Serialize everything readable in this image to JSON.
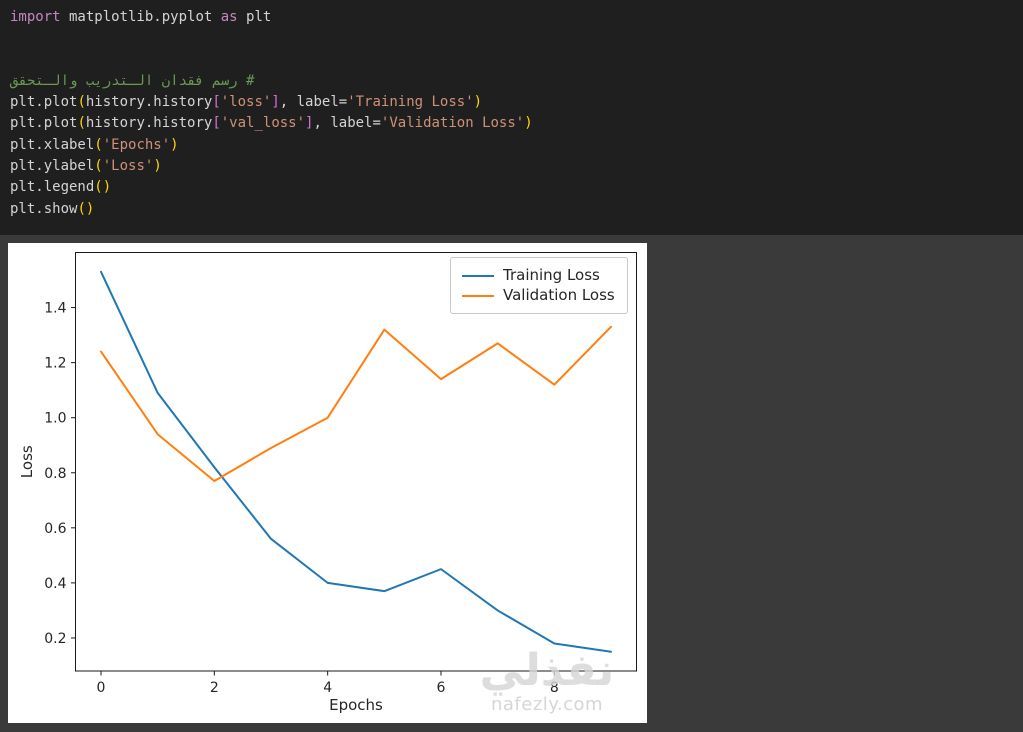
{
  "colors": {
    "page_background": "#3a3a3a",
    "code_background": "#1f1f1f",
    "figure_background": "#ffffff",
    "axis_text": "#262626",
    "spine": "#1a1a1a",
    "training_loss": "#1f77b4",
    "validation_loss": "#ff7f0e"
  },
  "code": {
    "token_colors": {
      "keyword": "#c586c0",
      "plain": "#d4d4d4",
      "string": "#ce9178",
      "paren": "#ffd700",
      "bracket": "#d670d6",
      "comment": "#6a9955"
    },
    "lines": [
      {
        "tokens": [
          [
            "keyword",
            "import"
          ],
          [
            "plain",
            " matplotlib.pyplot "
          ],
          [
            "keyword",
            "as"
          ],
          [
            "plain",
            " plt"
          ]
        ]
      },
      {
        "tokens": []
      },
      {
        "tokens": []
      },
      {
        "rtl": true,
        "tokens": [
          [
            "comment",
            "# رسم فقدان الـتدريب والـتحقق"
          ]
        ]
      },
      {
        "tokens": [
          [
            "plain",
            "plt.plot"
          ],
          [
            "paren",
            "("
          ],
          [
            "plain",
            "history.history"
          ],
          [
            "bracket",
            "["
          ],
          [
            "string",
            "'loss'"
          ],
          [
            "bracket",
            "]"
          ],
          [
            "plain",
            ", label="
          ],
          [
            "string",
            "'Training Loss'"
          ],
          [
            "paren",
            ")"
          ]
        ]
      },
      {
        "tokens": [
          [
            "plain",
            "plt.plot"
          ],
          [
            "paren",
            "("
          ],
          [
            "plain",
            "history.history"
          ],
          [
            "bracket",
            "["
          ],
          [
            "string",
            "'val_loss'"
          ],
          [
            "bracket",
            "]"
          ],
          [
            "plain",
            ", label="
          ],
          [
            "string",
            "'Validation Loss'"
          ],
          [
            "paren",
            ")"
          ]
        ]
      },
      {
        "tokens": [
          [
            "plain",
            "plt.xlabel"
          ],
          [
            "paren",
            "("
          ],
          [
            "string",
            "'Epochs'"
          ],
          [
            "paren",
            ")"
          ]
        ]
      },
      {
        "tokens": [
          [
            "plain",
            "plt.ylabel"
          ],
          [
            "paren",
            "("
          ],
          [
            "string",
            "'Loss'"
          ],
          [
            "paren",
            ")"
          ]
        ]
      },
      {
        "tokens": [
          [
            "plain",
            "plt.legend"
          ],
          [
            "paren",
            "()"
          ]
        ]
      },
      {
        "tokens": [
          [
            "plain",
            "plt.show"
          ],
          [
            "paren",
            "()"
          ]
        ]
      }
    ]
  },
  "chart_data": {
    "type": "line",
    "x": [
      0,
      1,
      2,
      3,
      4,
      5,
      6,
      7,
      8,
      9
    ],
    "series": [
      {
        "name": "Training Loss",
        "color": "#1f77b4",
        "values": [
          1.53,
          1.09,
          0.82,
          0.56,
          0.4,
          0.37,
          0.45,
          0.3,
          0.18,
          0.15
        ]
      },
      {
        "name": "Validation Loss",
        "color": "#ff7f0e",
        "values": [
          1.24,
          0.94,
          0.77,
          0.89,
          1.0,
          1.32,
          1.14,
          1.27,
          1.12,
          1.33
        ]
      }
    ],
    "title": "",
    "xlabel": "Epochs",
    "ylabel": "Loss",
    "xticks": [
      0,
      2,
      4,
      6,
      8
    ],
    "yticks": [
      0.2,
      0.4,
      0.6,
      0.8,
      1.0,
      1.2,
      1.4
    ],
    "xlim": [
      -0.45,
      9.45
    ],
    "ylim": [
      0.08,
      1.6
    ],
    "grid": false,
    "legend_position": "upper right"
  },
  "watermark": {
    "logo": "نفذلي",
    "domain": "nafezly.com"
  }
}
